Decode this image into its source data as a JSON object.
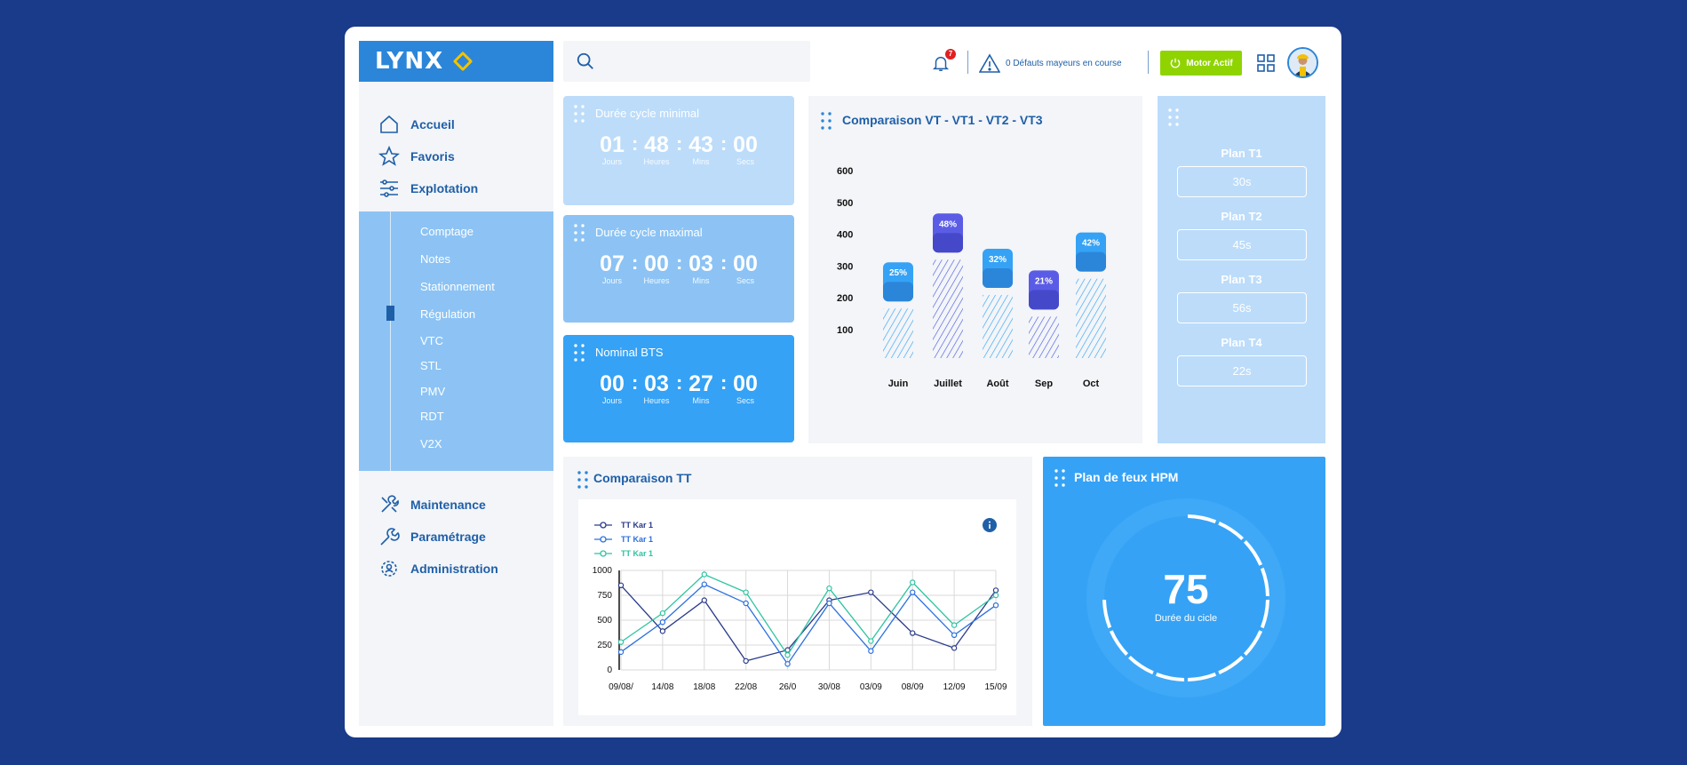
{
  "app": {
    "logo": "LYNX"
  },
  "sidebar": {
    "main_items": [
      {
        "label": "Accueil",
        "icon": "home-icon"
      },
      {
        "label": "Favoris",
        "icon": "star-icon"
      },
      {
        "label": "Explotation",
        "icon": "sliders-icon"
      }
    ],
    "sub_items": [
      "Comptage",
      "Notes",
      "Stationnement",
      "Régulation",
      "VTC",
      "STL",
      "PMV",
      "RDT",
      "V2X"
    ],
    "active_sub_item": "Régulation",
    "bottom_items": [
      {
        "label": "Maintenance",
        "icon": "tools-icon"
      },
      {
        "label": "Paramétrage",
        "icon": "wrench-icon"
      },
      {
        "label": "Administration",
        "icon": "users-gear-icon"
      }
    ]
  },
  "topbar": {
    "search_placeholder": "",
    "notification_count": "7",
    "defects_text": "0 Défauts mayeurs en course",
    "motor_button": "Motor Actif"
  },
  "timers": [
    {
      "title": "Durée cycle minimal",
      "values": [
        "01",
        "48",
        "43",
        "00"
      ],
      "units": [
        "Jours",
        "Heures",
        "Mins",
        "Secs"
      ]
    },
    {
      "title": "Durée cycle maximal",
      "values": [
        "07",
        "00",
        "03",
        "00"
      ],
      "units": [
        "Jours",
        "Heures",
        "Mins",
        "Secs"
      ]
    },
    {
      "title": "Nominal BTS",
      "values": [
        "00",
        "03",
        "27",
        "00"
      ],
      "units": [
        "Jours",
        "Heures",
        "Mins",
        "Secs"
      ]
    }
  ],
  "bar_panel": {
    "title": "Comparaison VT - VT1 - VT2 -  VT3"
  },
  "plans": {
    "items": [
      {
        "label": "Plan T1",
        "value": "30s"
      },
      {
        "label": "Plan T2",
        "value": "45s"
      },
      {
        "label": "Plan T3",
        "value": "56s"
      },
      {
        "label": "Plan T4",
        "value": "22s"
      }
    ]
  },
  "line_panel": {
    "title": "Comparaison TT"
  },
  "gauge": {
    "title": "Plan de feux HPM",
    "value": "75",
    "label": "Durée du cicle"
  },
  "colors": {
    "accent": "#2b86d9",
    "lime": "#8fd400",
    "background": "#1a3a8a"
  },
  "chart_data": [
    {
      "type": "bar",
      "categories": [
        "Juin",
        "Juillet",
        "Août",
        "Sep",
        "Oct"
      ],
      "values": [
        160,
        340,
        210,
        130,
        270
      ],
      "labels": [
        "25%",
        "48%",
        "32%",
        "21%",
        "42%"
      ],
      "yticks": [
        100,
        200,
        300,
        400,
        500,
        600
      ],
      "ylim": [
        0,
        600
      ]
    },
    {
      "type": "line",
      "x": [
        "09/08/",
        "14/08",
        "18/08",
        "22/08",
        "26/0",
        "30/08",
        "03/09",
        "08/09",
        "12/09",
        "15/09"
      ],
      "yticks": [
        0,
        250,
        500,
        750,
        1000
      ],
      "ylim": [
        0,
        1000
      ],
      "series": [
        {
          "name": "TT Kar 1",
          "color": "#2a3a8a",
          "values": [
            850,
            390,
            700,
            90,
            200,
            700,
            780,
            370,
            220,
            800
          ]
        },
        {
          "name": "TT Kar 1",
          "color": "#2b6fe0",
          "values": [
            180,
            480,
            860,
            670,
            60,
            670,
            190,
            780,
            350,
            650
          ]
        },
        {
          "name": "TT Kar 1",
          "color": "#2ec4a0",
          "values": [
            280,
            570,
            960,
            780,
            150,
            820,
            290,
            880,
            450,
            750
          ]
        }
      ]
    }
  ]
}
